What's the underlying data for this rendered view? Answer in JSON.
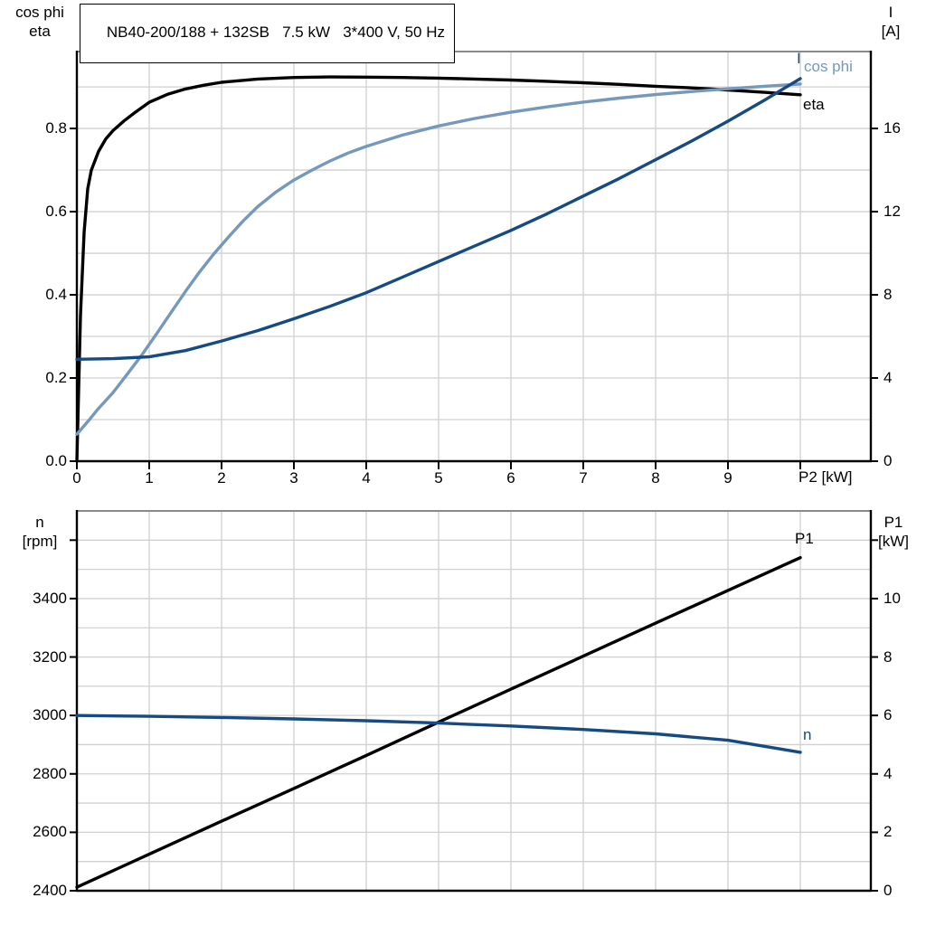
{
  "title": "NB40-200/188 + 132SB   7.5 kW   3*400 V, 50 Hz",
  "colors": {
    "grid": "#d0d0d0",
    "axis": "#000000",
    "frame_top": "#8a8a8a",
    "dark_blue": "#154b82",
    "light_blue": "#7598bd",
    "black": "#000000"
  },
  "chart_data": [
    {
      "type": "line",
      "title": "NB40-200/188 + 132SB   7.5 kW   3*400 V, 50 Hz",
      "axes": {
        "x": {
          "label": "P2 [kW]",
          "min": 0,
          "max": 10.975,
          "grid": [
            1,
            2,
            3,
            4,
            5,
            6,
            7,
            8,
            9,
            10
          ],
          "ticks": [
            [
              0,
              "0"
            ],
            [
              1,
              "1"
            ],
            [
              2,
              "2"
            ],
            [
              3,
              "3"
            ],
            [
              4,
              "4"
            ],
            [
              5,
              "5"
            ],
            [
              6,
              "6"
            ],
            [
              7,
              "7"
            ],
            [
              8,
              "8"
            ],
            [
              9,
              "9"
            ],
            [
              10,
              ""
            ]
          ]
        },
        "y_left": {
          "header": [
            "cos phi",
            "eta"
          ],
          "min": 0,
          "max": 0.985,
          "grid": [
            0.1,
            0.2,
            0.3,
            0.4,
            0.5,
            0.6,
            0.7,
            0.8,
            0.9
          ],
          "ticks": [
            [
              0,
              "0.0"
            ],
            [
              0.2,
              "0.2"
            ],
            [
              0.4,
              "0.4"
            ],
            [
              0.6,
              "0.6"
            ],
            [
              0.8,
              "0.8"
            ]
          ]
        },
        "y_right": {
          "header": [
            "I",
            "[A]"
          ],
          "min": 0,
          "max": 19.7,
          "grid": [],
          "ticks": [
            [
              0,
              "0"
            ],
            [
              4,
              "4"
            ],
            [
              8,
              "8"
            ],
            [
              12,
              "12"
            ],
            [
              16,
              "16"
            ]
          ]
        }
      },
      "series": [
        {
          "name": "eta",
          "color": "#000000",
          "axis": "left",
          "points": [
            [
              0,
              0
            ],
            [
              0.05,
              0.35
            ],
            [
              0.1,
              0.55
            ],
            [
              0.15,
              0.655
            ],
            [
              0.2,
              0.7
            ],
            [
              0.3,
              0.745
            ],
            [
              0.4,
              0.775
            ],
            [
              0.5,
              0.795
            ],
            [
              0.65,
              0.818
            ],
            [
              0.8,
              0.838
            ],
            [
              1,
              0.863
            ],
            [
              1.25,
              0.882
            ],
            [
              1.5,
              0.895
            ],
            [
              1.75,
              0.904
            ],
            [
              2,
              0.911
            ],
            [
              2.5,
              0.919
            ],
            [
              3,
              0.9225
            ],
            [
              3.5,
              0.924
            ],
            [
              4,
              0.9235
            ],
            [
              4.5,
              0.9225
            ],
            [
              5,
              0.921
            ],
            [
              5.5,
              0.919
            ],
            [
              6,
              0.9165
            ],
            [
              6.5,
              0.9135
            ],
            [
              7,
              0.91
            ],
            [
              7.5,
              0.906
            ],
            [
              8,
              0.9015
            ],
            [
              8.5,
              0.8975
            ],
            [
              9,
              0.8925
            ],
            [
              9.5,
              0.887
            ],
            [
              10,
              0.881
            ]
          ]
        },
        {
          "name": "cos phi",
          "color": "#7598bd",
          "axis": "left",
          "points": [
            [
              0,
              0.065
            ],
            [
              0.15,
              0.095
            ],
            [
              0.3,
              0.127
            ],
            [
              0.5,
              0.165
            ],
            [
              0.7,
              0.21
            ],
            [
              0.9,
              0.256
            ],
            [
              1.1,
              0.306
            ],
            [
              1.3,
              0.357
            ],
            [
              1.5,
              0.408
            ],
            [
              1.7,
              0.456
            ],
            [
              1.9,
              0.5
            ],
            [
              2.1,
              0.54
            ],
            [
              2.3,
              0.578
            ],
            [
              2.5,
              0.612
            ],
            [
              2.75,
              0.647
            ],
            [
              3,
              0.676
            ],
            [
              3.25,
              0.7
            ],
            [
              3.5,
              0.722
            ],
            [
              3.75,
              0.741
            ],
            [
              4,
              0.757
            ],
            [
              4.5,
              0.784
            ],
            [
              5,
              0.806
            ],
            [
              5.5,
              0.824
            ],
            [
              6,
              0.839
            ],
            [
              6.5,
              0.852
            ],
            [
              7,
              0.8635
            ],
            [
              7.5,
              0.873
            ],
            [
              8,
              0.8815
            ],
            [
              8.5,
              0.889
            ],
            [
              9,
              0.8955
            ],
            [
              9.5,
              0.9015
            ],
            [
              10,
              0.907
            ]
          ]
        },
        {
          "name": "I",
          "color": "#154b82",
          "axis": "right",
          "points": [
            [
              0,
              4.9
            ],
            [
              0.5,
              4.93
            ],
            [
              1,
              5.02
            ],
            [
              1.5,
              5.32
            ],
            [
              2,
              5.78
            ],
            [
              2.5,
              6.28
            ],
            [
              3,
              6.85
            ],
            [
              3.5,
              7.45
            ],
            [
              4,
              8.1
            ],
            [
              4.5,
              8.85
            ],
            [
              5,
              9.6
            ],
            [
              5.5,
              10.35
            ],
            [
              6,
              11.1
            ],
            [
              6.5,
              11.9
            ],
            [
              7,
              12.75
            ],
            [
              7.5,
              13.6
            ],
            [
              8,
              14.5
            ],
            [
              8.5,
              15.4
            ],
            [
              9,
              16.35
            ],
            [
              9.5,
              17.35
            ],
            [
              10,
              18.4
            ]
          ]
        }
      ]
    },
    {
      "type": "line",
      "title": "",
      "axes": {
        "x": {
          "label": "",
          "min": 0,
          "max": 10.975,
          "grid": [
            1,
            2,
            3,
            4,
            5,
            6,
            7,
            8,
            9,
            10
          ],
          "ticks": []
        },
        "y_left": {
          "header": [
            "n",
            "[rpm]"
          ],
          "min": 2400,
          "max": 3700,
          "grid": [
            2500,
            2600,
            2700,
            2800,
            2900,
            3000,
            3100,
            3200,
            3300,
            3400,
            3500,
            3600
          ],
          "ticks": [
            [
              2400,
              "2400"
            ],
            [
              2600,
              "2600"
            ],
            [
              2800,
              "2800"
            ],
            [
              3000,
              "3000"
            ],
            [
              3200,
              "3200"
            ],
            [
              3400,
              "3400"
            ],
            [
              3600,
              ""
            ]
          ]
        },
        "y_right": {
          "header": [
            "P1",
            "[kW]"
          ],
          "min": 0,
          "max": 13.0,
          "grid": [],
          "ticks": [
            [
              0,
              "0"
            ],
            [
              2,
              "2"
            ],
            [
              4,
              "4"
            ],
            [
              6,
              "6"
            ],
            [
              8,
              "8"
            ],
            [
              10,
              "10"
            ],
            [
              12,
              ""
            ]
          ]
        }
      },
      "series": [
        {
          "name": "P1",
          "color": "#000000",
          "axis": "right",
          "points": [
            [
              0,
              0.12
            ],
            [
              1,
              1.25
            ],
            [
              2,
              2.38
            ],
            [
              3,
              3.5
            ],
            [
              4,
              4.63
            ],
            [
              5,
              5.77
            ],
            [
              6,
              6.9
            ],
            [
              7,
              8.03
            ],
            [
              8,
              9.16
            ],
            [
              9,
              10.28
            ],
            [
              10,
              11.4
            ]
          ]
        },
        {
          "name": "n",
          "color": "#154b82",
          "axis": "left",
          "points": [
            [
              0,
              3000
            ],
            [
              1,
              2997
            ],
            [
              2,
              2993
            ],
            [
              3,
              2988
            ],
            [
              4,
              2982
            ],
            [
              5,
              2974
            ],
            [
              6,
              2964
            ],
            [
              7,
              2952
            ],
            [
              8,
              2937
            ],
            [
              9,
              2915
            ],
            [
              10,
              2874
            ]
          ]
        }
      ]
    }
  ]
}
